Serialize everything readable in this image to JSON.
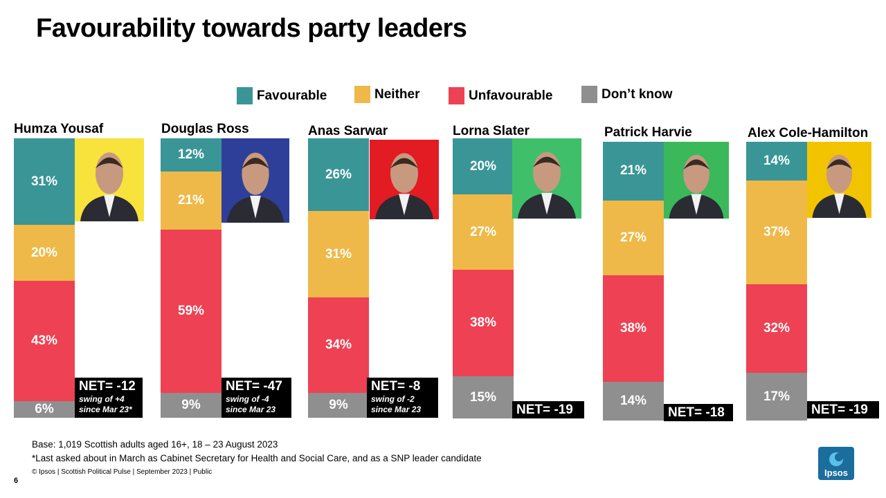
{
  "page": {
    "title": "Favourability towards party leaders",
    "page_number": "6"
  },
  "legend": [
    {
      "label": "Favourable",
      "color": "#3a9597"
    },
    {
      "label": "Neither",
      "color": "#eeb948"
    },
    {
      "label": "Unfavourable",
      "color": "#ee4153"
    },
    {
      "label": "Don’t know",
      "color": "#8f8f8f"
    }
  ],
  "chart_data": {
    "type": "bar",
    "stacked": true,
    "orientation": "vertical",
    "title": "Favourability towards party leaders",
    "categories": [
      "Humza Yousaf",
      "Douglas Ross",
      "Anas Sarwar",
      "Lorna Slater",
      "Patrick Harvie",
      "Alex Cole-Hamilton"
    ],
    "series": [
      {
        "name": "Favourable",
        "color": "#3a9597",
        "values": [
          31,
          12,
          26,
          20,
          21,
          14
        ]
      },
      {
        "name": "Neither",
        "color": "#eeb948",
        "values": [
          20,
          21,
          31,
          27,
          27,
          37
        ]
      },
      {
        "name": "Unfavourable",
        "color": "#ee4153",
        "values": [
          43,
          59,
          34,
          38,
          38,
          32
        ]
      },
      {
        "name": "Don’t know",
        "color": "#8f8f8f",
        "values": [
          6,
          9,
          9,
          15,
          14,
          17
        ]
      }
    ],
    "value_labels": [
      [
        "31%",
        "20%",
        "43%",
        "6%"
      ],
      [
        "12%",
        "21%",
        "59%",
        "9%"
      ],
      [
        "26%",
        "31%",
        "34%",
        "9%"
      ],
      [
        "20%",
        "27%",
        "38%",
        "15%"
      ],
      [
        "21%",
        "27%",
        "38%",
        "14%"
      ],
      [
        "14%",
        "37%",
        "32%",
        "17%"
      ]
    ],
    "net": [
      {
        "label": "NET= -12",
        "swing": [
          "swing of +4",
          "since Mar 23*"
        ]
      },
      {
        "label": "NET= -47",
        "swing": [
          "swing of -4",
          "since Mar 23"
        ]
      },
      {
        "label": "NET= -8",
        "swing": [
          "swing of -2",
          "since Mar 23"
        ]
      },
      {
        "label": "NET= -19",
        "swing": []
      },
      {
        "label": "NET= -18",
        "swing": []
      },
      {
        "label": "NET= -19",
        "swing": []
      }
    ],
    "photo_backgrounds": [
      "#f7e33c",
      "#2e3f9a",
      "#e31b23",
      "#3fbf6a",
      "#3bb85a",
      "#f2c400"
    ]
  },
  "footer": {
    "base": "Base: 1,019 Scottish adults aged 16+, 18 – 23 August 2023",
    "note": "*Last asked about in March as Cabinet Secretary for Health and Social Care, and as a SNP leader candidate",
    "copyright": "© Ipsos | Scottish Political Pulse | September 2023 | Public",
    "logo_text": "Ipsos"
  }
}
